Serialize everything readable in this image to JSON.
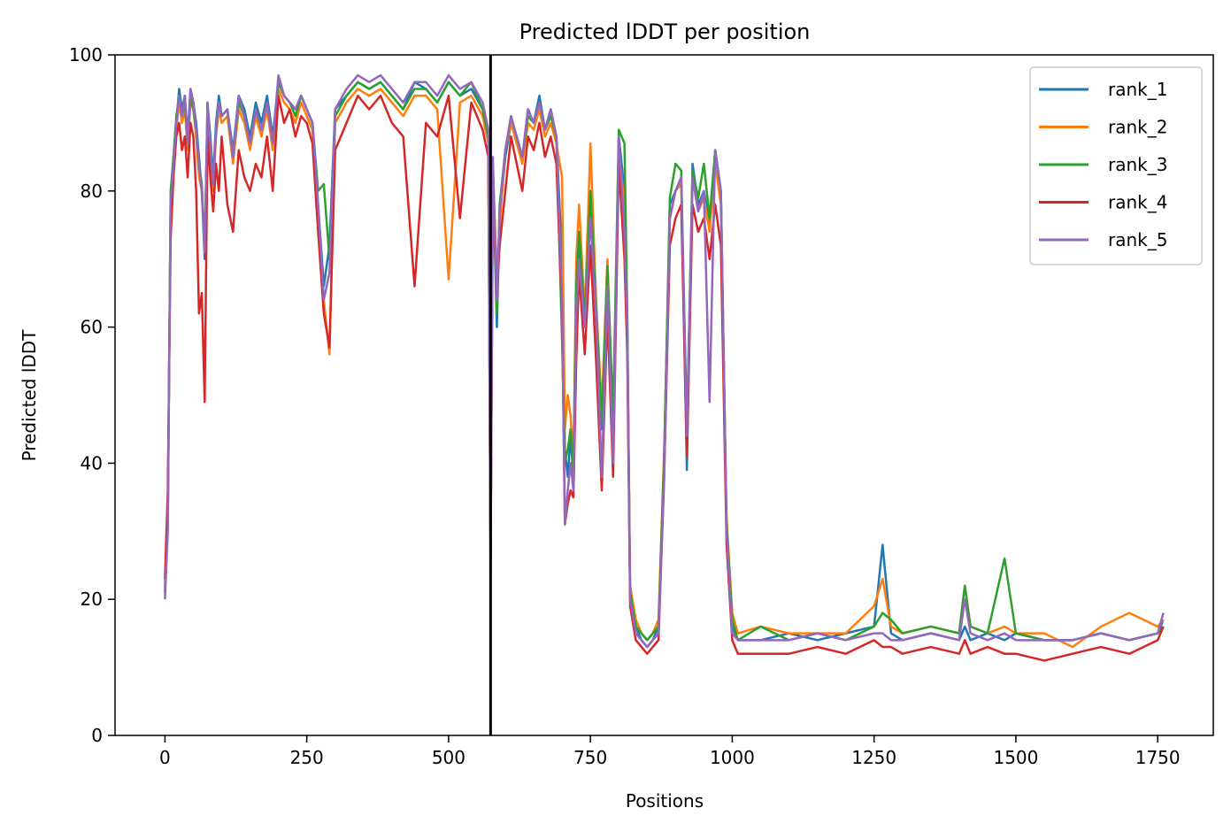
{
  "chart_data": {
    "type": "line",
    "title": "Predicted lDDT per position",
    "xlabel": "Positions",
    "ylabel": "Predicted lDDT",
    "xlim": [
      -88,
      1848
    ],
    "ylim": [
      0,
      100
    ],
    "xticks": [
      0,
      250,
      500,
      750,
      1000,
      1250,
      1500,
      1750
    ],
    "yticks": [
      0,
      20,
      40,
      60,
      80,
      100
    ],
    "grid": false,
    "legend_position": "top-right",
    "vline_x": 574,
    "series": [
      {
        "name": "rank_1",
        "color": "#1f77b4",
        "x": [
          0,
          5,
          10,
          15,
          20,
          25,
          30,
          35,
          40,
          45,
          50,
          55,
          60,
          65,
          70,
          75,
          80,
          85,
          90,
          95,
          100,
          110,
          120,
          130,
          140,
          150,
          160,
          170,
          180,
          190,
          200,
          210,
          220,
          230,
          240,
          250,
          260,
          270,
          280,
          290,
          300,
          320,
          340,
          360,
          380,
          400,
          420,
          440,
          460,
          480,
          500,
          520,
          540,
          560,
          570,
          574,
          578,
          585,
          590,
          600,
          610,
          620,
          630,
          640,
          650,
          660,
          670,
          680,
          690,
          700,
          705,
          710,
          715,
          720,
          725,
          730,
          740,
          750,
          760,
          770,
          780,
          790,
          800,
          810,
          815,
          820,
          830,
          840,
          850,
          860,
          870,
          880,
          890,
          900,
          910,
          920,
          930,
          940,
          950,
          960,
          970,
          980,
          990,
          1000,
          1010,
          1050,
          1100,
          1150,
          1200,
          1250,
          1265,
          1280,
          1300,
          1350,
          1400,
          1410,
          1420,
          1450,
          1480,
          1500,
          1550,
          1600,
          1650,
          1700,
          1750,
          1760
        ],
        "y": [
          21,
          32,
          78,
          85,
          90,
          95,
          92,
          94,
          88,
          95,
          93,
          90,
          85,
          80,
          70,
          93,
          88,
          82,
          90,
          94,
          91,
          92,
          86,
          94,
          92,
          88,
          93,
          90,
          94,
          88,
          96,
          94,
          93,
          92,
          94,
          92,
          90,
          78,
          66,
          72,
          92,
          94,
          96,
          95,
          96,
          94,
          92,
          96,
          95,
          93,
          96,
          94,
          95,
          92,
          88,
          26,
          84,
          60,
          76,
          85,
          90,
          88,
          85,
          92,
          90,
          94,
          89,
          92,
          88,
          70,
          42,
          38,
          44,
          38,
          60,
          72,
          60,
          78,
          62,
          45,
          68,
          44,
          88,
          80,
          60,
          20,
          16,
          14,
          13,
          14,
          16,
          40,
          78,
          80,
          82,
          39,
          84,
          78,
          80,
          75,
          86,
          80,
          30,
          16,
          14,
          14,
          15,
          14,
          15,
          16,
          28,
          15,
          14,
          15,
          14,
          16,
          14,
          15,
          14,
          15,
          14,
          14,
          15,
          14,
          15,
          17
        ]
      },
      {
        "name": "rank_2",
        "color": "#ff7f0e",
        "x": [
          0,
          5,
          10,
          15,
          20,
          25,
          30,
          35,
          40,
          45,
          50,
          55,
          60,
          65,
          70,
          75,
          80,
          85,
          90,
          95,
          100,
          110,
          120,
          130,
          140,
          150,
          160,
          170,
          180,
          190,
          200,
          210,
          220,
          230,
          240,
          250,
          260,
          270,
          280,
          290,
          300,
          320,
          340,
          360,
          380,
          400,
          420,
          440,
          460,
          480,
          500,
          520,
          540,
          560,
          570,
          574,
          578,
          585,
          590,
          600,
          610,
          620,
          630,
          640,
          650,
          660,
          670,
          680,
          690,
          700,
          705,
          710,
          715,
          720,
          725,
          730,
          740,
          750,
          760,
          770,
          780,
          790,
          800,
          810,
          815,
          820,
          830,
          840,
          850,
          860,
          870,
          880,
          890,
          900,
          910,
          920,
          930,
          940,
          950,
          960,
          970,
          980,
          990,
          1000,
          1010,
          1050,
          1100,
          1150,
          1200,
          1250,
          1265,
          1280,
          1300,
          1350,
          1400,
          1410,
          1420,
          1450,
          1480,
          1500,
          1550,
          1600,
          1650,
          1700,
          1750,
          1760
        ],
        "y": [
          22,
          33,
          79,
          84,
          89,
          93,
          90,
          92,
          86,
          93,
          92,
          88,
          82,
          80,
          72,
          91,
          86,
          80,
          88,
          92,
          90,
          91,
          84,
          92,
          90,
          86,
          91,
          88,
          92,
          86,
          95,
          93,
          92,
          90,
          93,
          91,
          89,
          76,
          64,
          56,
          90,
          93,
          95,
          94,
          95,
          93,
          91,
          94,
          94,
          92,
          67,
          93,
          94,
          91,
          87,
          27,
          83,
          68,
          75,
          86,
          90,
          87,
          84,
          90,
          89,
          92,
          88,
          90,
          87,
          82,
          45,
          50,
          47,
          40,
          70,
          78,
          62,
          87,
          64,
          48,
          70,
          45,
          86,
          78,
          58,
          22,
          17,
          15,
          14,
          15,
          17,
          42,
          76,
          80,
          81,
          44,
          82,
          77,
          79,
          74,
          84,
          78,
          32,
          18,
          15,
          16,
          15,
          15,
          15,
          19,
          23,
          16,
          15,
          16,
          15,
          22,
          16,
          15,
          16,
          15,
          15,
          13,
          16,
          18,
          16,
          17
        ]
      },
      {
        "name": "rank_3",
        "color": "#2ca02c",
        "x": [
          0,
          5,
          10,
          15,
          20,
          25,
          30,
          35,
          40,
          45,
          50,
          55,
          60,
          65,
          70,
          75,
          80,
          85,
          90,
          95,
          100,
          110,
          120,
          130,
          140,
          150,
          160,
          170,
          180,
          190,
          200,
          210,
          220,
          230,
          240,
          250,
          260,
          270,
          280,
          290,
          300,
          320,
          340,
          360,
          380,
          400,
          420,
          440,
          460,
          480,
          500,
          520,
          540,
          560,
          570,
          574,
          578,
          585,
          590,
          600,
          610,
          620,
          630,
          640,
          650,
          660,
          670,
          680,
          690,
          700,
          705,
          710,
          715,
          720,
          725,
          730,
          740,
          750,
          760,
          770,
          780,
          790,
          800,
          810,
          815,
          820,
          830,
          840,
          850,
          860,
          870,
          880,
          890,
          900,
          910,
          920,
          930,
          940,
          950,
          960,
          970,
          980,
          990,
          1000,
          1010,
          1050,
          1100,
          1150,
          1200,
          1250,
          1265,
          1280,
          1300,
          1350,
          1400,
          1410,
          1420,
          1450,
          1480,
          1500,
          1550,
          1600,
          1650,
          1700,
          1750,
          1760
        ],
        "y": [
          21,
          31,
          80,
          85,
          91,
          94,
          91,
          93,
          87,
          94,
          92,
          89,
          84,
          81,
          71,
          92,
          87,
          81,
          89,
          93,
          91,
          92,
          85,
          93,
          91,
          87,
          92,
          89,
          93,
          87,
          96,
          94,
          93,
          91,
          94,
          92,
          90,
          80,
          81,
          70,
          91,
          94,
          96,
          95,
          96,
          94,
          92,
          95,
          95,
          93,
          96,
          94,
          96,
          92,
          88,
          26,
          84,
          62,
          78,
          86,
          91,
          88,
          85,
          91,
          90,
          93,
          89,
          91,
          88,
          58,
          40,
          42,
          45,
          39,
          66,
          74,
          61,
          80,
          63,
          46,
          69,
          47,
          89,
          87,
          62,
          21,
          16,
          15,
          14,
          15,
          16,
          41,
          79,
          84,
          83,
          45,
          83,
          79,
          84,
          76,
          86,
          80,
          31,
          17,
          14,
          16,
          14,
          15,
          14,
          16,
          18,
          17,
          15,
          16,
          15,
          22,
          16,
          15,
          26,
          15,
          14,
          14,
          15,
          14,
          15,
          16
        ]
      },
      {
        "name": "rank_4",
        "color": "#d62728",
        "x": [
          0,
          5,
          10,
          15,
          20,
          25,
          30,
          35,
          40,
          45,
          50,
          55,
          60,
          65,
          70,
          75,
          80,
          85,
          90,
          95,
          100,
          110,
          120,
          130,
          140,
          150,
          160,
          170,
          180,
          190,
          200,
          210,
          220,
          230,
          240,
          250,
          260,
          270,
          280,
          290,
          300,
          320,
          340,
          360,
          380,
          400,
          420,
          440,
          460,
          480,
          500,
          520,
          540,
          560,
          570,
          574,
          578,
          585,
          590,
          600,
          610,
          620,
          630,
          640,
          650,
          660,
          670,
          680,
          690,
          700,
          705,
          710,
          715,
          720,
          725,
          730,
          740,
          750,
          760,
          770,
          780,
          790,
          800,
          810,
          815,
          820,
          830,
          840,
          850,
          860,
          870,
          880,
          890,
          900,
          910,
          920,
          930,
          940,
          950,
          960,
          970,
          980,
          990,
          1000,
          1010,
          1050,
          1100,
          1150,
          1200,
          1250,
          1265,
          1280,
          1300,
          1350,
          1400,
          1410,
          1420,
          1450,
          1480,
          1500,
          1550,
          1600,
          1650,
          1700,
          1750,
          1760
        ],
        "y": [
          23,
          36,
          73,
          82,
          88,
          90,
          86,
          88,
          82,
          90,
          88,
          80,
          62,
          65,
          49,
          88,
          82,
          77,
          84,
          80,
          88,
          78,
          74,
          86,
          82,
          80,
          84,
          82,
          88,
          80,
          94,
          90,
          92,
          88,
          91,
          90,
          87,
          74,
          62,
          57,
          86,
          90,
          94,
          92,
          94,
          90,
          88,
          66,
          90,
          88,
          94,
          76,
          93,
          89,
          85,
          25,
          80,
          65,
          72,
          80,
          88,
          84,
          80,
          88,
          86,
          90,
          85,
          88,
          84,
          62,
          31,
          34,
          36,
          35,
          55,
          68,
          56,
          72,
          55,
          36,
          62,
          38,
          84,
          70,
          56,
          19,
          14,
          13,
          12,
          13,
          14,
          38,
          72,
          76,
          78,
          41,
          78,
          74,
          76,
          70,
          78,
          72,
          28,
          14,
          12,
          12,
          12,
          13,
          12,
          14,
          13,
          13,
          12,
          13,
          12,
          14,
          12,
          13,
          12,
          12,
          11,
          12,
          13,
          12,
          14,
          16
        ]
      },
      {
        "name": "rank_5",
        "color": "#9467bd",
        "x": [
          0,
          5,
          10,
          15,
          20,
          25,
          30,
          35,
          40,
          45,
          50,
          55,
          60,
          65,
          70,
          75,
          80,
          85,
          90,
          95,
          100,
          110,
          120,
          130,
          140,
          150,
          160,
          170,
          180,
          190,
          200,
          210,
          220,
          230,
          240,
          250,
          260,
          270,
          280,
          290,
          300,
          320,
          340,
          360,
          380,
          400,
          420,
          440,
          460,
          480,
          500,
          520,
          540,
          560,
          570,
          574,
          578,
          585,
          590,
          600,
          610,
          620,
          630,
          640,
          650,
          660,
          670,
          680,
          690,
          700,
          705,
          710,
          715,
          720,
          725,
          730,
          740,
          750,
          760,
          770,
          780,
          790,
          800,
          810,
          815,
          820,
          830,
          840,
          850,
          860,
          870,
          880,
          890,
          900,
          910,
          920,
          930,
          940,
          950,
          960,
          970,
          980,
          990,
          1000,
          1010,
          1050,
          1100,
          1150,
          1200,
          1250,
          1265,
          1280,
          1300,
          1350,
          1400,
          1410,
          1420,
          1450,
          1480,
          1500,
          1550,
          1600,
          1650,
          1700,
          1750,
          1760
        ],
        "y": [
          20,
          30,
          78,
          84,
          90,
          94,
          91,
          94,
          87,
          95,
          93,
          89,
          84,
          80,
          71,
          93,
          87,
          81,
          89,
          93,
          91,
          92,
          85,
          94,
          91,
          87,
          92,
          89,
          93,
          87,
          97,
          94,
          93,
          92,
          94,
          92,
          90,
          78,
          64,
          68,
          92,
          95,
          97,
          96,
          97,
          95,
          93,
          96,
          96,
          94,
          97,
          95,
          96,
          93,
          89,
          24,
          85,
          64,
          77,
          86,
          91,
          88,
          85,
          92,
          90,
          93,
          89,
          92,
          88,
          64,
          31,
          36,
          40,
          36,
          62,
          70,
          60,
          76,
          62,
          38,
          66,
          40,
          88,
          74,
          60,
          20,
          15,
          14,
          13,
          14,
          15,
          38,
          76,
          80,
          82,
          44,
          82,
          77,
          80,
          49,
          86,
          80,
          30,
          15,
          14,
          14,
          14,
          15,
          14,
          15,
          15,
          14,
          14,
          15,
          14,
          20,
          15,
          14,
          15,
          14,
          14,
          14,
          15,
          14,
          15,
          18
        ]
      }
    ]
  }
}
